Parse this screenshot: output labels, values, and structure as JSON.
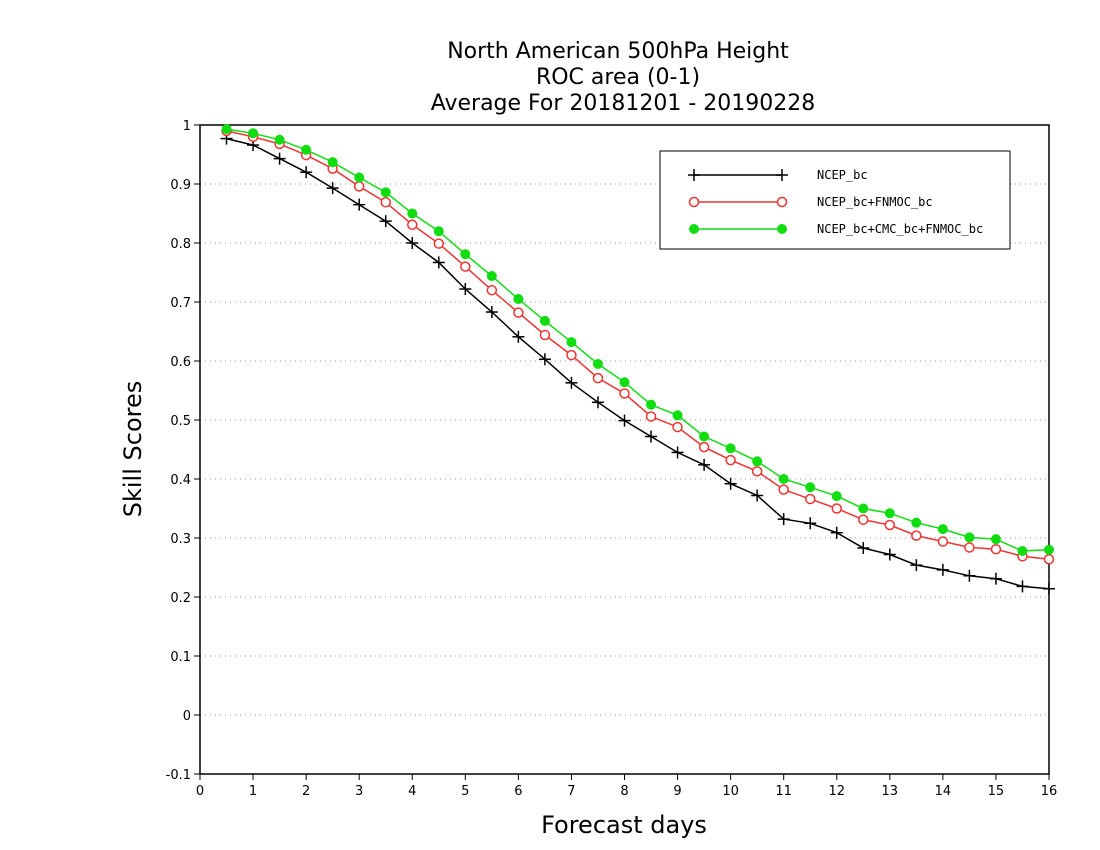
{
  "chart_data": {
    "type": "line",
    "title": "North American 500hPa Height",
    "subtitle": "ROC area (0-1)",
    "period": "Average For 20181201 - 20190228",
    "xlabel": "Forecast days",
    "ylabel": "Skill Scores",
    "xlim": [
      0,
      16
    ],
    "ylim": [
      -0.1,
      1
    ],
    "xticks": [
      "0",
      "1",
      "2",
      "3",
      "4",
      "5",
      "6",
      "7",
      "8",
      "9",
      "10",
      "11",
      "12",
      "13",
      "14",
      "15",
      "16"
    ],
    "yticks": [
      "-0.1",
      "0",
      "0.1",
      "0.2",
      "0.3",
      "0.4",
      "0.5",
      "0.6",
      "0.7",
      "0.8",
      "0.9",
      "1"
    ],
    "grid": "horizontal-dotted",
    "legend_position": "top-right",
    "x": [
      0.5,
      1,
      1.5,
      2,
      2.5,
      3,
      3.5,
      4,
      4.5,
      5,
      5.5,
      6,
      6.5,
      7,
      7.5,
      8,
      8.5,
      9,
      9.5,
      10,
      10.5,
      11,
      11.5,
      12,
      12.5,
      13,
      13.5,
      14,
      14.5,
      15,
      15.5,
      16
    ],
    "series": [
      {
        "name": "NCEP_bc",
        "color": "#000000",
        "marker": "plus",
        "values": [
          0.977,
          0.966,
          0.943,
          0.92,
          0.893,
          0.865,
          0.837,
          0.8,
          0.767,
          0.722,
          0.683,
          0.641,
          0.603,
          0.563,
          0.53,
          0.499,
          0.472,
          0.445,
          0.424,
          0.392,
          0.372,
          0.332,
          0.325,
          0.309,
          0.283,
          0.272,
          0.254,
          0.246,
          0.236,
          0.231,
          0.218,
          0.214
        ]
      },
      {
        "name": "NCEP_bc+FNMOC_bc",
        "color": "#ee3333",
        "marker": "open-circle",
        "values": [
          0.99,
          0.98,
          0.968,
          0.949,
          0.926,
          0.896,
          0.869,
          0.831,
          0.799,
          0.76,
          0.72,
          0.682,
          0.644,
          0.61,
          0.571,
          0.545,
          0.506,
          0.488,
          0.454,
          0.432,
          0.413,
          0.382,
          0.366,
          0.35,
          0.331,
          0.322,
          0.304,
          0.294,
          0.284,
          0.281,
          0.269,
          0.264
        ]
      },
      {
        "name": "NCEP_bc+CMC_bc+FNMOC_bc",
        "color": "#11dd11",
        "marker": "filled-circle",
        "values": [
          0.993,
          0.986,
          0.975,
          0.958,
          0.937,
          0.911,
          0.886,
          0.85,
          0.82,
          0.781,
          0.744,
          0.705,
          0.668,
          0.632,
          0.595,
          0.564,
          0.526,
          0.508,
          0.472,
          0.452,
          0.43,
          0.4,
          0.386,
          0.371,
          0.35,
          0.342,
          0.326,
          0.315,
          0.301,
          0.298,
          0.278,
          0.28
        ]
      }
    ]
  }
}
